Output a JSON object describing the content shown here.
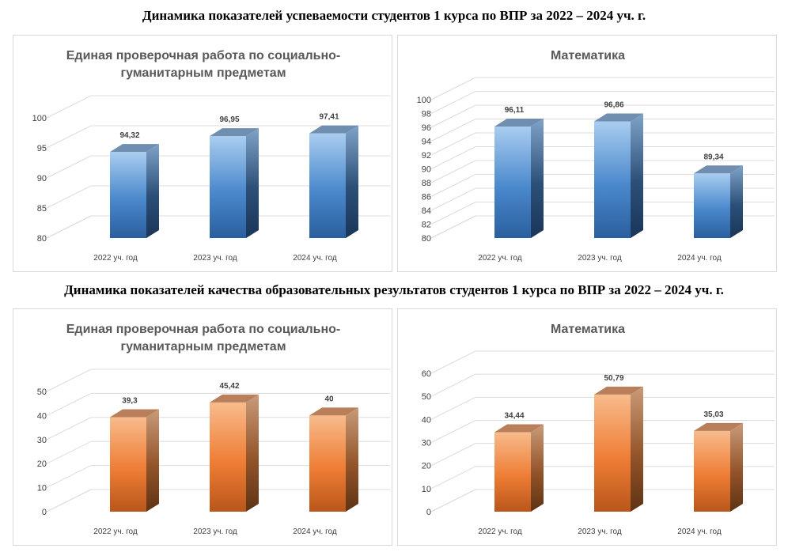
{
  "headings": {
    "top": "Динамика показателей успеваемости студентов 1 курса по ВПР за 2022 – 2024 уч. г.",
    "bottom": "Динамика показателей качества образовательных результатов студентов 1 курса по ВПР за 2022 – 2024 уч. г."
  },
  "chart_data": [
    {
      "type": "bar",
      "title_lines": [
        "Единая проверочная работа по социально-",
        "гуманитарным предметам"
      ],
      "categories": [
        "2022 уч. год",
        "2023 уч. год",
        "2024 уч. год"
      ],
      "values": [
        94.32,
        96.95,
        97.41
      ],
      "value_labels": [
        "94,32",
        "96,95",
        "97,41"
      ],
      "ylim": [
        80,
        100
      ],
      "yticks": [
        80,
        85,
        90,
        95,
        100
      ],
      "color": "blue",
      "grid": true
    },
    {
      "type": "bar",
      "title_lines": [
        "Математика"
      ],
      "categories": [
        "2022 уч. год",
        "2023 уч. год",
        "2024 уч. год"
      ],
      "values": [
        96.11,
        96.86,
        89.34
      ],
      "value_labels": [
        "96,11",
        "96,86",
        "89,34"
      ],
      "ylim": [
        80,
        100
      ],
      "yticks": [
        80,
        82,
        84,
        86,
        88,
        90,
        92,
        94,
        96,
        98,
        100
      ],
      "color": "blue",
      "grid": true
    },
    {
      "type": "bar",
      "title_lines": [
        "Единая проверочная работа по социально-",
        "гуманитарным предметам"
      ],
      "categories": [
        "2022 уч. год",
        "2023 уч. год",
        "2024 уч. год"
      ],
      "values": [
        39.3,
        45.42,
        40
      ],
      "value_labels": [
        "39,3",
        "45,42",
        "40"
      ],
      "ylim": [
        0,
        50
      ],
      "yticks": [
        0,
        10,
        20,
        30,
        40,
        50
      ],
      "color": "orange",
      "grid": true
    },
    {
      "type": "bar",
      "title_lines": [
        "Математика"
      ],
      "categories": [
        "2022 уч. год",
        "2023 уч. год",
        "2024 уч. год"
      ],
      "values": [
        34.44,
        50.79,
        35.03
      ],
      "value_labels": [
        "34,44",
        "50,79",
        "35,03"
      ],
      "ylim": [
        0,
        60
      ],
      "yticks": [
        0,
        10,
        20,
        30,
        40,
        50,
        60
      ],
      "color": "orange",
      "grid": true
    }
  ]
}
